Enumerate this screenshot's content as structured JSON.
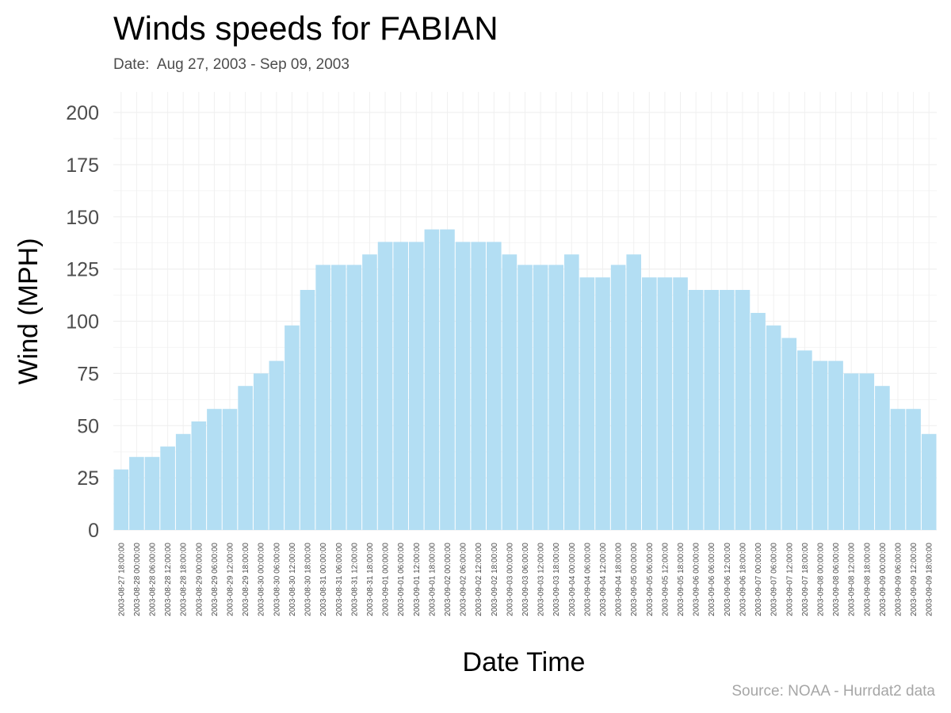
{
  "title": "Winds speeds for FABIAN",
  "subtitle": "Date:  Aug 27, 2003 - Sep 09, 2003",
  "source": "Source: NOAA - Hurrdat2 data",
  "colors": {
    "bar": "#b3def3",
    "grid": "#f0f0f0"
  },
  "chart_data": {
    "type": "bar",
    "xlabel": "Date Time",
    "ylabel": "Wind (MPH)",
    "ylim": [
      0,
      200
    ],
    "yticks": [
      0,
      25,
      50,
      75,
      100,
      125,
      150,
      175,
      200
    ],
    "grid": true,
    "categories": [
      "2003-08-27 18:00:00",
      "2003-08-28 00:00:00",
      "2003-08-28 06:00:00",
      "2003-08-28 12:00:00",
      "2003-08-28 18:00:00",
      "2003-08-29 00:00:00",
      "2003-08-29 06:00:00",
      "2003-08-29 12:00:00",
      "2003-08-29 18:00:00",
      "2003-08-30 00:00:00",
      "2003-08-30 06:00:00",
      "2003-08-30 12:00:00",
      "2003-08-30 18:00:00",
      "2003-08-31 00:00:00",
      "2003-08-31 06:00:00",
      "2003-08-31 12:00:00",
      "2003-08-31 18:00:00",
      "2003-09-01 00:00:00",
      "2003-09-01 06:00:00",
      "2003-09-01 12:00:00",
      "2003-09-01 18:00:00",
      "2003-09-02 00:00:00",
      "2003-09-02 06:00:00",
      "2003-09-02 12:00:00",
      "2003-09-02 18:00:00",
      "2003-09-03 00:00:00",
      "2003-09-03 06:00:00",
      "2003-09-03 12:00:00",
      "2003-09-03 18:00:00",
      "2003-09-04 00:00:00",
      "2003-09-04 06:00:00",
      "2003-09-04 12:00:00",
      "2003-09-04 18:00:00",
      "2003-09-05 00:00:00",
      "2003-09-05 06:00:00",
      "2003-09-05 12:00:00",
      "2003-09-05 18:00:00",
      "2003-09-06 00:00:00",
      "2003-09-06 06:00:00",
      "2003-09-06 12:00:00",
      "2003-09-06 18:00:00",
      "2003-09-07 00:00:00",
      "2003-09-07 06:00:00",
      "2003-09-07 12:00:00",
      "2003-09-07 18:00:00",
      "2003-09-08 00:00:00",
      "2003-09-08 06:00:00",
      "2003-09-08 12:00:00",
      "2003-09-08 18:00:00",
      "2003-09-09 00:00:00",
      "2003-09-09 06:00:00",
      "2003-09-09 12:00:00",
      "2003-09-09 18:00:00"
    ],
    "values": [
      29,
      35,
      35,
      40,
      46,
      52,
      58,
      58,
      69,
      75,
      81,
      98,
      115,
      127,
      127,
      127,
      132,
      138,
      138,
      138,
      144,
      144,
      138,
      138,
      138,
      132,
      127,
      127,
      127,
      132,
      121,
      121,
      127,
      132,
      121,
      121,
      121,
      115,
      115,
      115,
      115,
      104,
      98,
      92,
      86,
      81,
      81,
      75,
      75,
      69,
      58,
      58,
      46
    ]
  }
}
